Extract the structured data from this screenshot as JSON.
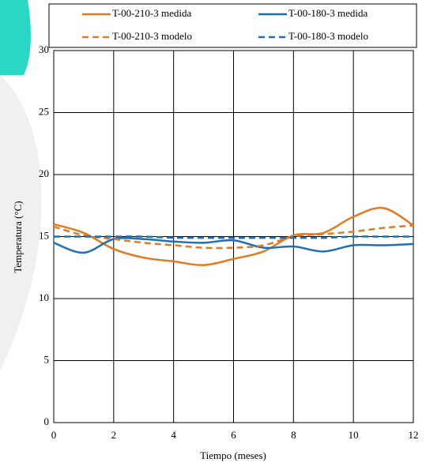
{
  "chart_data": {
    "type": "line",
    "x_label": "Tiempo (meses)",
    "y_label": "Temperatura (°C)",
    "x": [
      0,
      1,
      2,
      3,
      4,
      5,
      6,
      7,
      8,
      9,
      10,
      11,
      12
    ],
    "series": [
      {
        "name": "T-00-210-3 medida",
        "color": "#e07b24",
        "dashed": false,
        "values": [
          16.0,
          15.3,
          14.0,
          13.3,
          13.0,
          12.7,
          13.2,
          13.8,
          15.1,
          15.3,
          16.6,
          17.3,
          15.9
        ]
      },
      {
        "name": "T-00-180-3 medida",
        "color": "#1f6fb5",
        "dashed": false,
        "values": [
          14.5,
          13.7,
          14.8,
          14.8,
          14.6,
          14.5,
          14.7,
          14.1,
          14.2,
          13.8,
          14.3,
          14.3,
          14.4
        ]
      },
      {
        "name": "T-00-210-3 modelo",
        "color": "#e07b24",
        "dashed": true,
        "values": [
          15.8,
          15.1,
          14.8,
          14.5,
          14.3,
          14.1,
          14.1,
          14.3,
          15.0,
          15.2,
          15.4,
          15.7,
          15.9
        ]
      },
      {
        "name": "T-00-180-3 modelo",
        "color": "#1f6fb5",
        "dashed": true,
        "values": [
          15.0,
          15.0,
          15.0,
          15.0,
          14.9,
          14.9,
          14.9,
          14.9,
          14.9,
          14.9,
          15.0,
          15.0,
          15.0
        ]
      }
    ],
    "xlim": [
      0,
      12
    ],
    "xticks": [
      0,
      2,
      4,
      6,
      8,
      10,
      12
    ],
    "ylim": [
      0,
      30
    ],
    "yticks": [
      0,
      5,
      10,
      15,
      20,
      25,
      30
    ],
    "grid": true,
    "legend": "top"
  }
}
